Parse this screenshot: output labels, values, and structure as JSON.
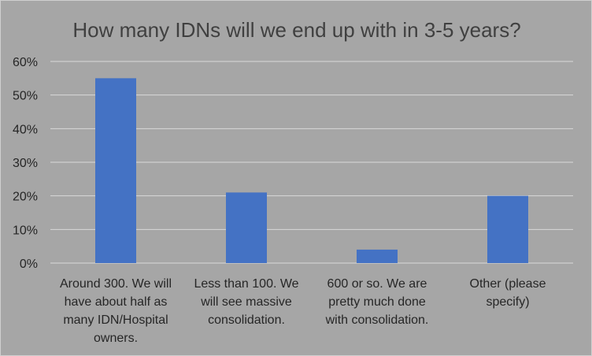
{
  "chart_data": {
    "type": "bar",
    "title": "How many IDNs will we end up with in 3-5 years?",
    "xlabel": "",
    "ylabel": "",
    "ylim": [
      0,
      60
    ],
    "y_ticks": [
      "0%",
      "10%",
      "20%",
      "30%",
      "40%",
      "50%",
      "60%"
    ],
    "categories": [
      [
        "Around 300. We will",
        "have about half as",
        "many IDN/Hospital",
        "owners."
      ],
      [
        "Less than 100. We",
        "will see massive",
        "consolidation."
      ],
      [
        "600 or so. We are",
        "pretty much done",
        "with consolidation."
      ],
      [
        "Other (please",
        "specify)"
      ]
    ],
    "values": [
      55,
      21,
      4,
      20
    ],
    "grid": true,
    "legend": "none",
    "bar_color": "#4472c4"
  }
}
